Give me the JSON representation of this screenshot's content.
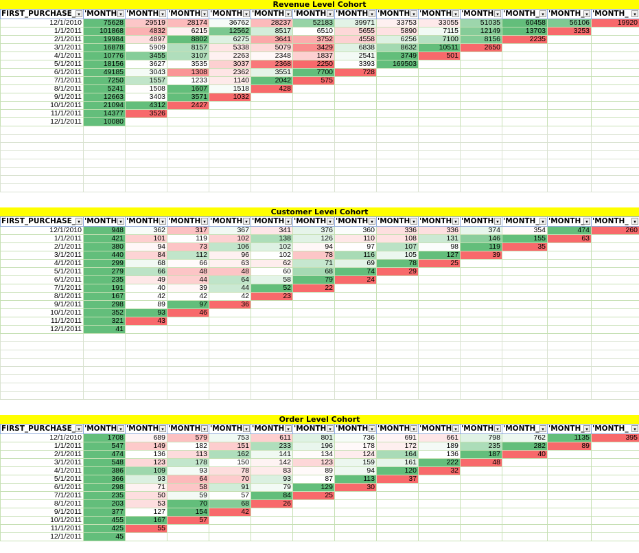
{
  "colors": {
    "title_bg": "#ffff00",
    "max_green": "#63be7b",
    "min_red": "#f8696b",
    "mid_white": "#ffffff"
  },
  "header_labels": [
    "FIRST_PURCHASE_",
    "'MONTH",
    "'MONTH",
    "'MONTH",
    "'MONTH",
    "'MONTH",
    "'MONTH",
    "'MONTH",
    "'MONTH",
    "'MONTH",
    "'MONTH",
    "'MONTH_",
    "'MONTH_",
    "'MONTH_"
  ],
  "dropdown_icon": "▾",
  "cohorts": [
    {
      "title": "Revenue Level Cohort",
      "rows": [
        {
          "date": "12/1/2010",
          "values": [
            75628,
            29519,
            28174,
            36762,
            28237,
            52183,
            39971,
            33753,
            33055,
            51035,
            60458,
            56106,
            19920
          ]
        },
        {
          "date": "1/1/2011",
          "values": [
            101868,
            4832,
            6215,
            12562,
            8517,
            6510,
            5655,
            5890,
            7115,
            12149,
            13703,
            3253
          ]
        },
        {
          "date": "2/1/2011",
          "values": [
            19984,
            4897,
            8802,
            6275,
            3641,
            3752,
            4558,
            6256,
            7100,
            8156,
            2235
          ]
        },
        {
          "date": "3/1/2011",
          "values": [
            16878,
            5909,
            8157,
            5338,
            5079,
            3429,
            6838,
            8632,
            10511,
            2650
          ]
        },
        {
          "date": "4/1/2011",
          "values": [
            10776,
            3455,
            3107,
            2263,
            2348,
            1837,
            2541,
            3749,
            501
          ]
        },
        {
          "date": "5/1/2011",
          "values": [
            18156,
            3627,
            3535,
            3037,
            2368,
            2250,
            3393,
            169503
          ]
        },
        {
          "date": "6/1/2011",
          "values": [
            49185,
            3043,
            1308,
            2362,
            3551,
            7700,
            728
          ]
        },
        {
          "date": "7/1/2011",
          "values": [
            7250,
            1557,
            1233,
            1140,
            2042,
            575
          ]
        },
        {
          "date": "8/1/2011",
          "values": [
            5241,
            1508,
            1607,
            1518,
            428
          ]
        },
        {
          "date": "9/1/2011",
          "values": [
            12663,
            3403,
            3571,
            1032
          ]
        },
        {
          "date": "10/1/2011",
          "values": [
            21094,
            4312,
            2427
          ]
        },
        {
          "date": "11/1/2011",
          "values": [
            14377,
            3526
          ]
        },
        {
          "date": "12/1/2011",
          "values": [
            10080
          ]
        }
      ]
    },
    {
      "title": "Customer Level Cohort",
      "rows": [
        {
          "date": "12/1/2010",
          "values": [
            948,
            362,
            317,
            367,
            341,
            376,
            360,
            336,
            336,
            374,
            354,
            474,
            260
          ]
        },
        {
          "date": "1/1/2011",
          "values": [
            421,
            101,
            119,
            102,
            138,
            126,
            110,
            108,
            131,
            146,
            155,
            63
          ]
        },
        {
          "date": "2/1/2011",
          "values": [
            380,
            94,
            73,
            106,
            102,
            94,
            97,
            107,
            98,
            119,
            35
          ]
        },
        {
          "date": "3/1/2011",
          "values": [
            440,
            84,
            112,
            96,
            102,
            78,
            116,
            105,
            127,
            39
          ]
        },
        {
          "date": "4/1/2011",
          "values": [
            299,
            68,
            66,
            63,
            62,
            71,
            69,
            78,
            25
          ]
        },
        {
          "date": "5/1/2011",
          "values": [
            279,
            66,
            48,
            48,
            60,
            68,
            74,
            29
          ]
        },
        {
          "date": "6/1/2011",
          "values": [
            235,
            49,
            44,
            64,
            58,
            79,
            24
          ]
        },
        {
          "date": "7/1/2011",
          "values": [
            191,
            40,
            39,
            44,
            52,
            22
          ]
        },
        {
          "date": "8/1/2011",
          "values": [
            167,
            42,
            42,
            42,
            23
          ]
        },
        {
          "date": "9/1/2011",
          "values": [
            298,
            89,
            97,
            36
          ]
        },
        {
          "date": "10/1/2011",
          "values": [
            352,
            93,
            46
          ]
        },
        {
          "date": "11/1/2011",
          "values": [
            321,
            43
          ]
        },
        {
          "date": "12/1/2011",
          "values": [
            41
          ]
        }
      ]
    },
    {
      "title": "Order Level Cohort",
      "rows": [
        {
          "date": "12/1/2010",
          "values": [
            1708,
            689,
            579,
            753,
            611,
            801,
            736,
            691,
            661,
            798,
            762,
            1135,
            395
          ]
        },
        {
          "date": "1/1/2011",
          "values": [
            547,
            149,
            182,
            151,
            233,
            196,
            178,
            172,
            189,
            235,
            282,
            89
          ]
        },
        {
          "date": "2/1/2011",
          "values": [
            474,
            136,
            113,
            162,
            141,
            134,
            124,
            164,
            136,
            187,
            40
          ]
        },
        {
          "date": "3/1/2011",
          "values": [
            548,
            123,
            178,
            150,
            142,
            123,
            159,
            161,
            222,
            48
          ]
        },
        {
          "date": "4/1/2011",
          "values": [
            386,
            109,
            93,
            78,
            83,
            89,
            94,
            120,
            32
          ]
        },
        {
          "date": "5/1/2011",
          "values": [
            366,
            93,
            64,
            70,
            93,
            87,
            113,
            37
          ]
        },
        {
          "date": "6/1/2011",
          "values": [
            298,
            71,
            58,
            91,
            79,
            129,
            30
          ]
        },
        {
          "date": "7/1/2011",
          "values": [
            235,
            50,
            59,
            57,
            84,
            25
          ]
        },
        {
          "date": "8/1/2011",
          "values": [
            203,
            53,
            70,
            68,
            26
          ]
        },
        {
          "date": "9/1/2011",
          "values": [
            377,
            127,
            154,
            42
          ]
        },
        {
          "date": "10/1/2011",
          "values": [
            455,
            167,
            57
          ]
        },
        {
          "date": "11/1/2011",
          "values": [
            425,
            55
          ]
        },
        {
          "date": "12/1/2011",
          "values": [
            45
          ]
        }
      ]
    }
  ]
}
